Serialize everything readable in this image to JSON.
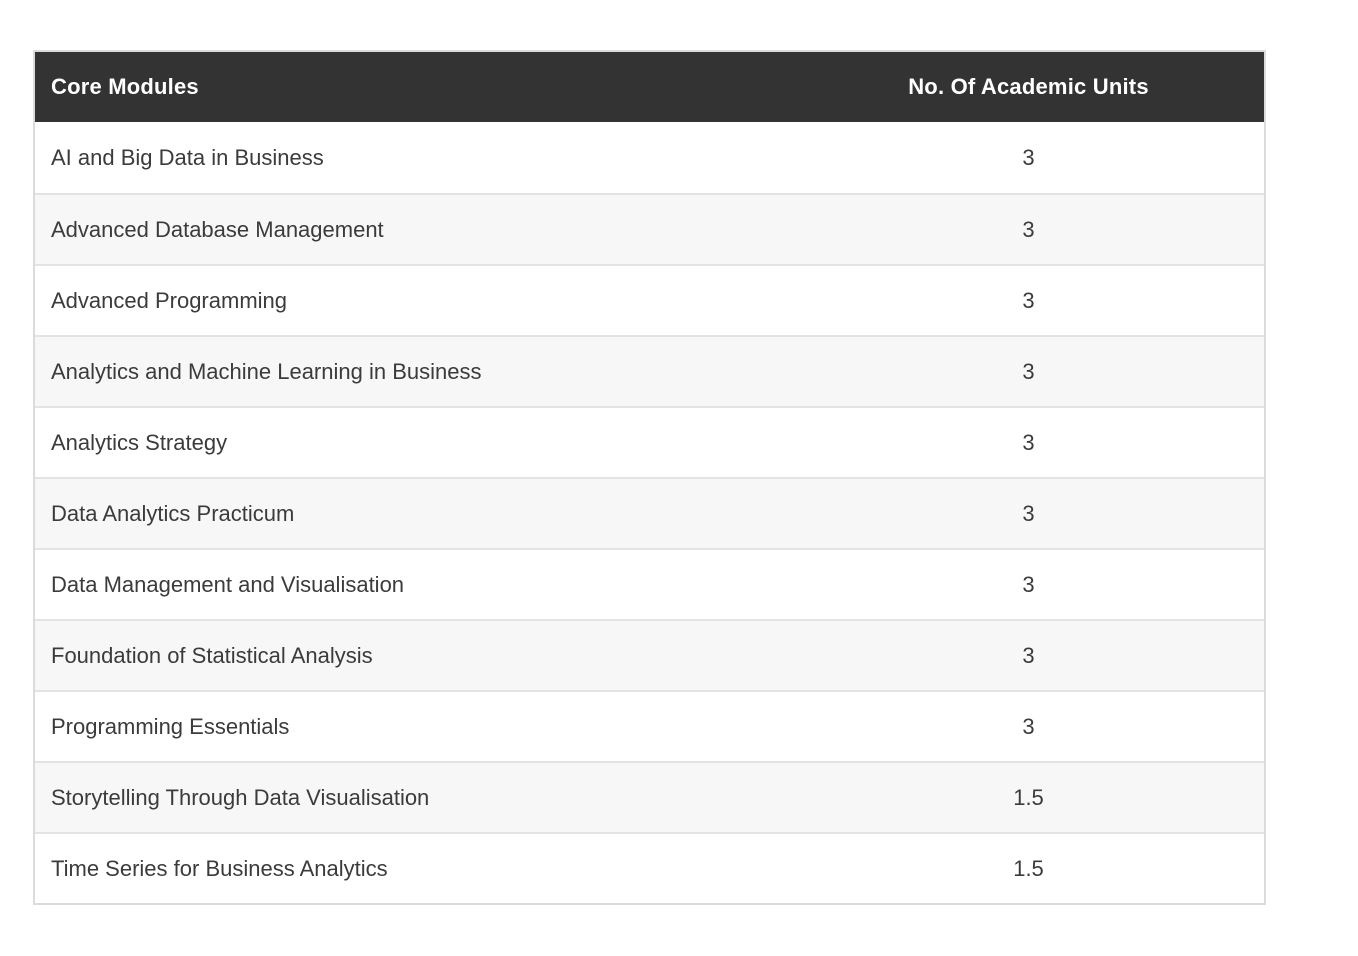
{
  "table": {
    "columns": [
      {
        "label": "Core Modules",
        "align": "left"
      },
      {
        "label": "No. Of Academic Units",
        "align": "center"
      }
    ],
    "rows": [
      {
        "module": "AI and Big Data in Business",
        "units": "3"
      },
      {
        "module": "Advanced Database Management",
        "units": "3"
      },
      {
        "module": "Advanced Programming",
        "units": "3"
      },
      {
        "module": "Analytics and Machine Learning in Business",
        "units": "3"
      },
      {
        "module": "Analytics Strategy",
        "units": "3"
      },
      {
        "module": "Data Analytics Practicum",
        "units": "3"
      },
      {
        "module": "Data Management and Visualisation",
        "units": "3"
      },
      {
        "module": "Foundation of Statistical Analysis",
        "units": "3"
      },
      {
        "module": "Programming Essentials",
        "units": "3"
      },
      {
        "module": "Storytelling Through Data Visualisation",
        "units": "1.5"
      },
      {
        "module": "Time Series for Business Analytics",
        "units": "1.5"
      }
    ]
  },
  "colors": {
    "header_bg": "#333333",
    "header_text": "#ffffff",
    "row_bg": "#ffffff",
    "row_alt_bg": "#f7f7f7",
    "outer_border": "#dbdbdb",
    "row_border": "#e3e3e3",
    "body_text": "#3b3b3b",
    "page_bg": "#ffffff"
  }
}
